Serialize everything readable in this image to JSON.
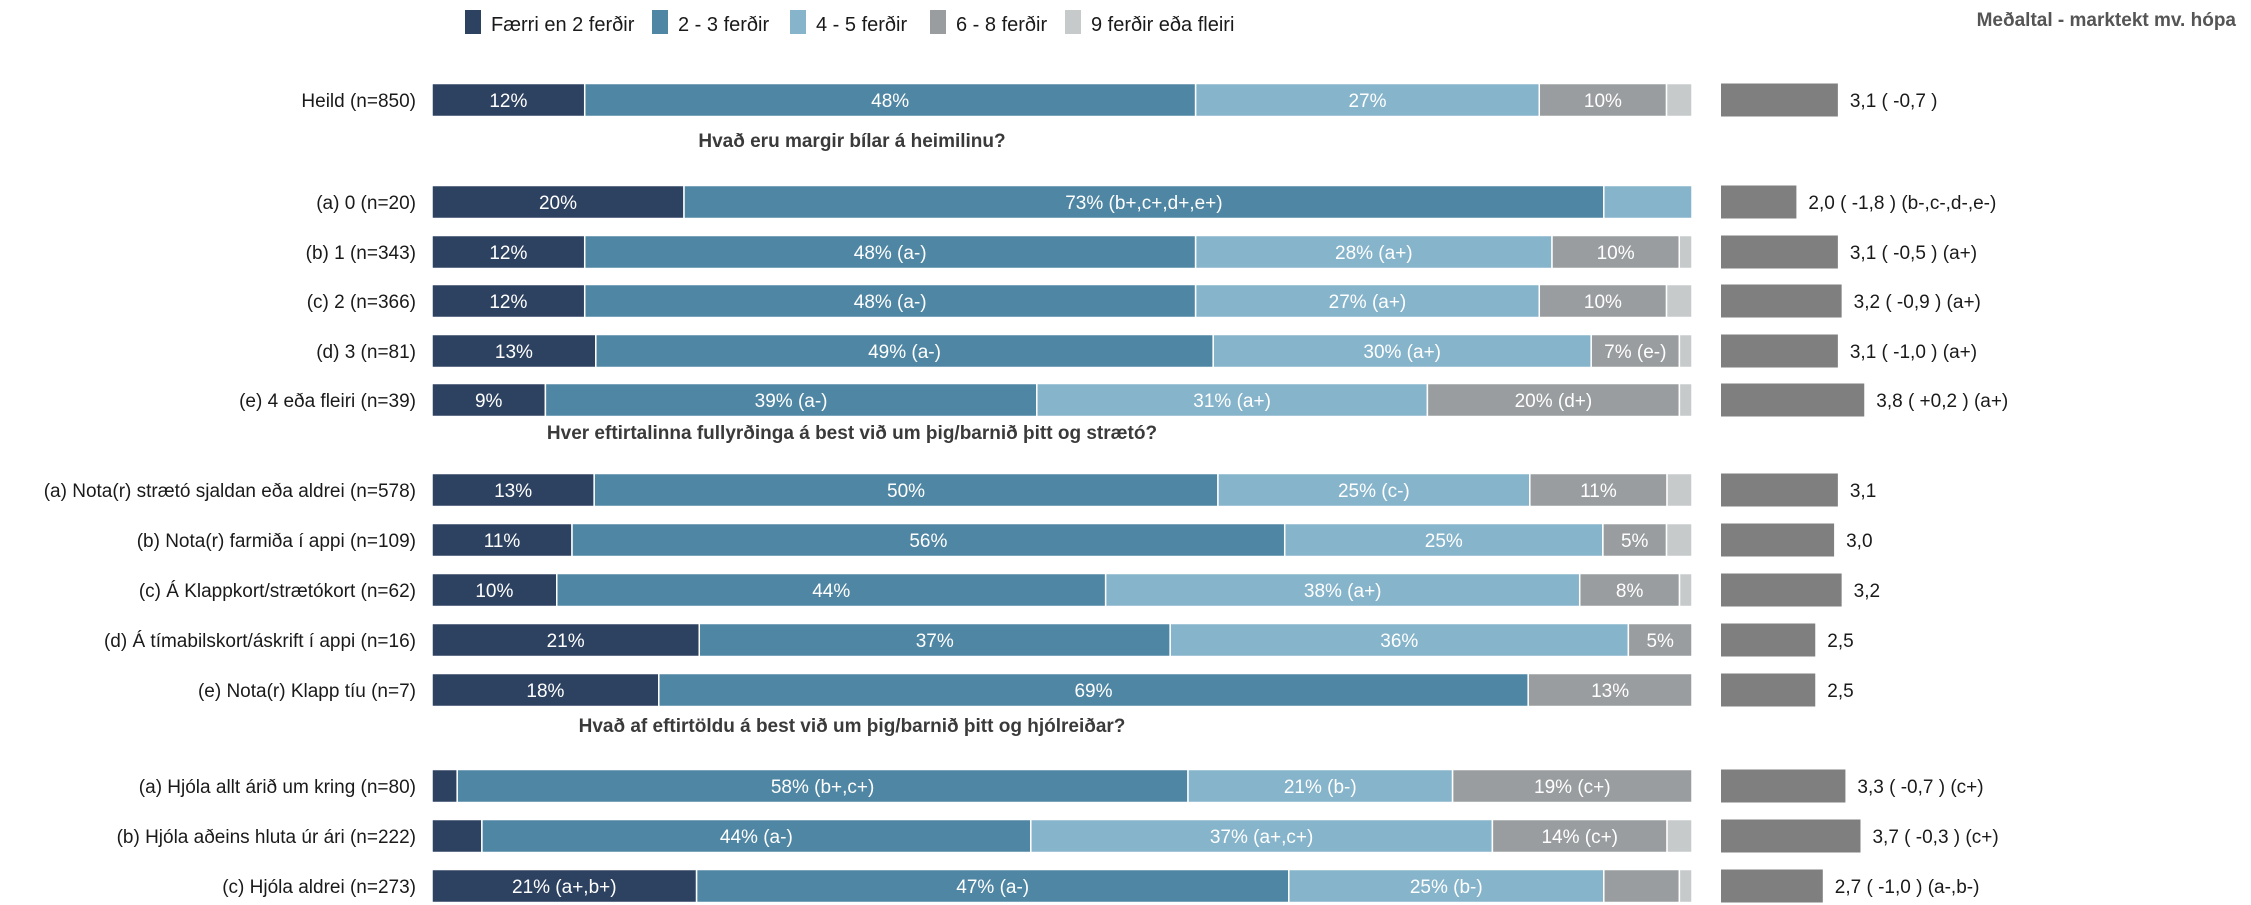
{
  "chart_data": {
    "type": "bar",
    "stacked": true,
    "orientation": "horizontal",
    "legend_position": "top",
    "avg_title": "Meðaltal - marktekt mv. hópa",
    "series": [
      {
        "name": "Færri en 2 ferðir",
        "color": "#2d4160"
      },
      {
        "name": "2 - 3 ferðir",
        "color": "#4f86a3"
      },
      {
        "name": "4 - 5 ferðir",
        "color": "#86b4cb"
      },
      {
        "name": "6 - 8 ferðir",
        "color": "#999d9f"
      },
      {
        "name": "9 ferðir eða fleiri",
        "color": "#c6cacb"
      }
    ],
    "avg_color": "#7f7f7f",
    "avg_range": [
      0,
      10
    ],
    "groups": [
      {
        "section": "",
        "rows": [
          {
            "label": "Heild (n=850)",
            "values": [
              12,
              48,
              27,
              10,
              2
            ],
            "labels": [
              "12%",
              "48%",
              "27%",
              "10%",
              ""
            ],
            "avg": 3.1,
            "avg_label": "3,1 ( -0,7 )"
          }
        ]
      },
      {
        "section": "Hvað eru margir bílar á heimilinu?",
        "rows": [
          {
            "label": "(a) 0 (n=20)",
            "values": [
              20,
              73,
              7,
              0,
              0
            ],
            "labels": [
              "20%",
              "73% (b+,c+,d+,e+)",
              "",
              "",
              ""
            ],
            "avg": 2.0,
            "avg_label": "2,0 ( -1,8 ) (b-,c-,d-,e-)"
          },
          {
            "label": "(b) 1 (n=343)",
            "values": [
              12,
              48,
              28,
              10,
              1
            ],
            "labels": [
              "12%",
              "48% (a-)",
              "28% (a+)",
              "10%",
              ""
            ],
            "avg": 3.1,
            "avg_label": "3,1 ( -0,5 ) (a+)"
          },
          {
            "label": "(c) 2 (n=366)",
            "values": [
              12,
              48,
              27,
              10,
              2
            ],
            "labels": [
              "12%",
              "48% (a-)",
              "27% (a+)",
              "10%",
              ""
            ],
            "avg": 3.2,
            "avg_label": "3,2 ( -0,9 ) (a+)"
          },
          {
            "label": "(d) 3 (n=81)",
            "values": [
              13,
              49,
              30,
              7,
              1
            ],
            "labels": [
              "13%",
              "49% (a-)",
              "30% (a+)",
              "7% (e-)",
              ""
            ],
            "avg": 3.1,
            "avg_label": "3,1 ( -1,0 ) (a+)"
          },
          {
            "label": "(e) 4 eða fleiri (n=39)",
            "values": [
              9,
              39,
              31,
              20,
              1
            ],
            "labels": [
              "9%",
              "39% (a-)",
              "31% (a+)",
              "20% (d+)",
              ""
            ],
            "avg": 3.8,
            "avg_label": "3,8 ( +0,2 ) (a+)"
          }
        ]
      },
      {
        "section": "Hver eftirtalinna fullyrðinga á best við um þig/barnið þitt og strætó?",
        "rows": [
          {
            "label": "(a) Nota(r) strætó sjaldan eða aldrei (n=578)",
            "values": [
              13,
              50,
              25,
              11,
              2
            ],
            "labels": [
              "13%",
              "50%",
              "25% (c-)",
              "11%",
              ""
            ],
            "avg": 3.1,
            "avg_label": "3,1"
          },
          {
            "label": "(b) Nota(r) farmiða í appi (n=109)",
            "values": [
              11,
              56,
              25,
              5,
              2
            ],
            "labels": [
              "11%",
              "56%",
              "25%",
              "5%",
              ""
            ],
            "avg": 3.0,
            "avg_label": "3,0"
          },
          {
            "label": "(c) Á Klappkort/strætókort (n=62)",
            "values": [
              10,
              44,
              38,
              8,
              1
            ],
            "labels": [
              "10%",
              "44%",
              "38% (a+)",
              "8%",
              ""
            ],
            "avg": 3.2,
            "avg_label": "3,2"
          },
          {
            "label": "(d) Á tímabilskort/áskrift í appi (n=16)",
            "values": [
              21,
              37,
              36,
              5,
              0
            ],
            "labels": [
              "21%",
              "37%",
              "36%",
              "5%",
              ""
            ],
            "avg": 2.5,
            "avg_label": "2,5"
          },
          {
            "label": "(e) Nota(r) Klapp tíu (n=7)",
            "values": [
              18,
              69,
              0,
              13,
              0
            ],
            "labels": [
              "18%",
              "69%",
              "",
              "13%",
              ""
            ],
            "avg": 2.5,
            "avg_label": "2,5"
          }
        ]
      },
      {
        "section": "Hvað af eftirtöldu á best við um þig/barnið þitt og hjólreiðar?",
        "rows": [
          {
            "label": "(a) Hjóla allt árið um kring (n=80)",
            "values": [
              2,
              58,
              21,
              19,
              0
            ],
            "labels": [
              "",
              "58% (b+,c+)",
              "21% (b-)",
              "19% (c+)",
              ""
            ],
            "avg": 3.3,
            "avg_label": "3,3 ( -0,7 ) (c+)"
          },
          {
            "label": "(b) Hjóla aðeins hluta úr ári (n=222)",
            "values": [
              4,
              44,
              37,
              14,
              2
            ],
            "labels": [
              "",
              "44% (a-)",
              "37% (a+,c+)",
              "14% (c+)",
              ""
            ],
            "avg": 3.7,
            "avg_label": "3,7 ( -0,3 ) (c+)"
          },
          {
            "label": "(c) Hjóla aldrei (n=273)",
            "values": [
              21,
              47,
              25,
              6,
              1
            ],
            "labels": [
              "21% (a+,b+)",
              "47% (a-)",
              "25% (b-)",
              "",
              ""
            ],
            "avg": 2.7,
            "avg_label": "2,7 ( -1,0 ) (a-,b-)"
          }
        ]
      }
    ]
  }
}
